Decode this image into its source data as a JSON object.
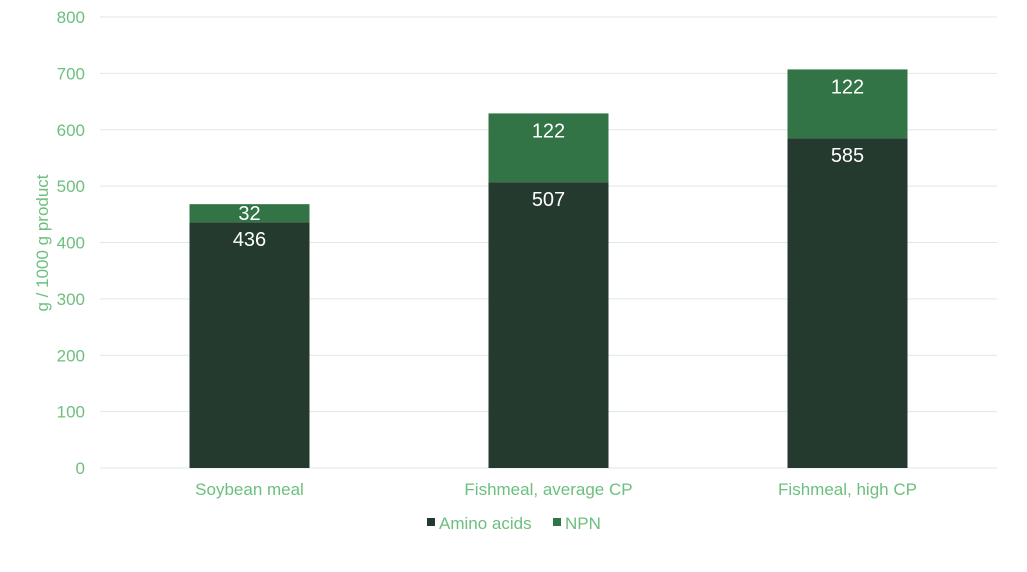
{
  "chart_data": {
    "type": "bar",
    "stacked": true,
    "categories": [
      "Soybean meal",
      "Fishmeal, average CP",
      "Fishmeal, high CP"
    ],
    "series": [
      {
        "name": "Amino acids",
        "values": [
          436,
          507,
          585
        ],
        "color": "#243a2e"
      },
      {
        "name": "NPN",
        "values": [
          32,
          122,
          122
        ],
        "color": "#337447"
      }
    ],
    "ylabel": "g / 1000 g product",
    "ylim": [
      0,
      800
    ],
    "yticks": [
      0,
      100,
      200,
      300,
      400,
      500,
      600,
      700,
      800
    ],
    "grid": true,
    "legend_position": "bottom",
    "text_color": "#6dbf7f",
    "grid_color": "#dde9e4"
  }
}
